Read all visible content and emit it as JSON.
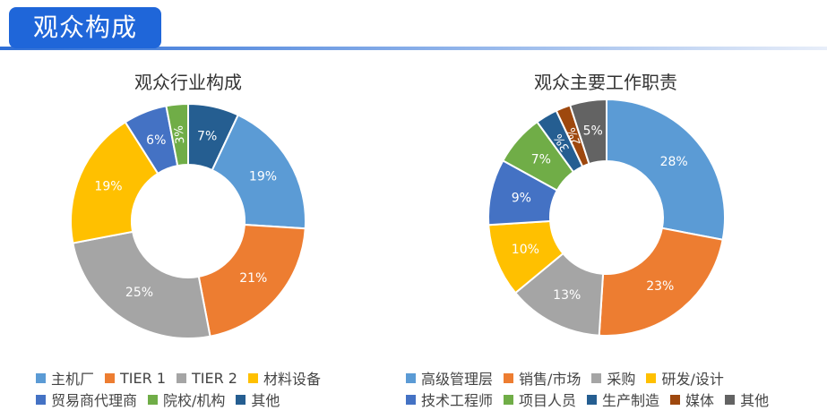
{
  "page": {
    "title": "观众构成"
  },
  "chart_data": [
    {
      "type": "pie",
      "title": "观众行业构成",
      "categories": [
        "主机厂",
        "TIER 1",
        "TIER 2",
        "材料设备",
        "贸易商代理商",
        "院校/机构",
        "其他"
      ],
      "values": [
        19,
        21,
        25,
        19,
        6,
        3,
        7
      ],
      "labels": [
        "19%",
        "21%",
        "25%",
        "19%",
        "6%",
        "3%",
        "7%"
      ],
      "colors": [
        "#5b9bd5",
        "#ed7d31",
        "#a5a5a5",
        "#ffc000",
        "#4472c4",
        "#70ad47",
        "#255e91"
      ],
      "plot_order": [
        6,
        0,
        1,
        2,
        3,
        4,
        5
      ],
      "label_colors": [
        "#ffffff",
        "#ffffff",
        "#ffffff",
        "#ffffff",
        "#ffffff",
        "#ffffff",
        "#ffffff"
      ],
      "legend_rows": [
        [
          "主机厂",
          "TIER 1",
          "TIER 2",
          "材料设备"
        ],
        [
          "贸易商代理商",
          "院校/机构",
          "其他"
        ]
      ]
    },
    {
      "type": "pie",
      "title": "观众主要工作职责",
      "categories": [
        "高级管理层",
        "销售/市场",
        "采购",
        "研发/设计",
        "技术工程师",
        "项目人员",
        "生产制造",
        "媒体",
        "其他"
      ],
      "values": [
        28,
        23,
        13,
        10,
        9,
        7,
        3,
        2,
        5
      ],
      "labels": [
        "28%",
        "23%",
        "13%",
        "10%",
        "9%",
        "7%",
        "3%",
        "2%",
        "5%"
      ],
      "colors": [
        "#5b9bd5",
        "#ed7d31",
        "#a5a5a5",
        "#ffc000",
        "#4472c4",
        "#70ad47",
        "#255e91",
        "#9e480e",
        "#636363"
      ],
      "plot_order": [
        0,
        1,
        2,
        3,
        4,
        5,
        6,
        7,
        8
      ],
      "label_colors": [
        "#ffffff",
        "#ffffff",
        "#ffffff",
        "#ffffff",
        "#ffffff",
        "#ffffff",
        "#ffffff",
        "#ffffff",
        "#ffffff"
      ],
      "legend_rows": [
        [
          "高级管理层",
          "销售/市场",
          "采购",
          "研发/设计"
        ],
        [
          "技术工程师",
          "项目人员",
          "生产制造",
          "媒体",
          "其他"
        ]
      ]
    }
  ]
}
